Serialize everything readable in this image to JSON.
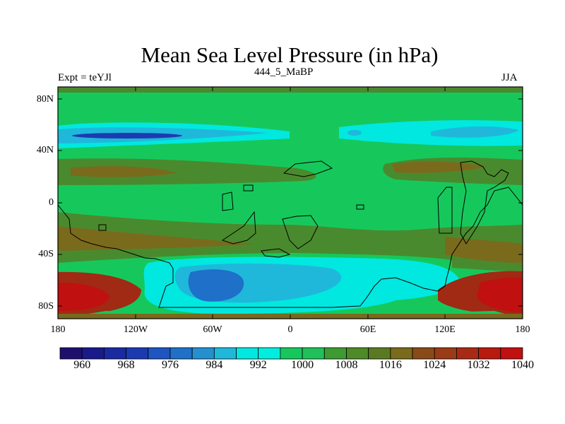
{
  "title": "Mean Sea Level Pressure (in hPa)",
  "left_label": "Expt = teYJl",
  "center_label": "444_5_MaBP",
  "right_label": "JJA",
  "lat_ticks": [
    "80N",
    "40N",
    "0",
    "40S",
    "80S"
  ],
  "lon_ticks": [
    "180",
    "120W",
    "60W",
    "0",
    "60E",
    "120E",
    "180"
  ],
  "colorbar": {
    "colors": [
      "#20106e",
      "#1a1a8a",
      "#1a2aa0",
      "#1c3ab0",
      "#1e55c0",
      "#2070c8",
      "#2590d0",
      "#1fb8da",
      "#00e8e0",
      "#00eee0",
      "#16c85c",
      "#20c05a",
      "#3e9b32",
      "#4e8a28",
      "#5a7a22",
      "#7a6a1c",
      "#8a4a18",
      "#9a3a16",
      "#a82a14",
      "#b81a10",
      "#c01010"
    ],
    "labels": [
      "960",
      "968",
      "976",
      "984",
      "992",
      "1000",
      "1008",
      "1016",
      "1024",
      "1032",
      "1040"
    ]
  },
  "fill_colors": {
    "green": "#16c85c",
    "olive": "#4a8a2e",
    "cyan": "#00e8e0",
    "lightblue": "#1fb8da",
    "blue": "#1e70c8",
    "darkblue": "#1e3ab0",
    "brown": "#7a6a1c",
    "red": "#b41812",
    "darkred": "#a02a14"
  }
}
